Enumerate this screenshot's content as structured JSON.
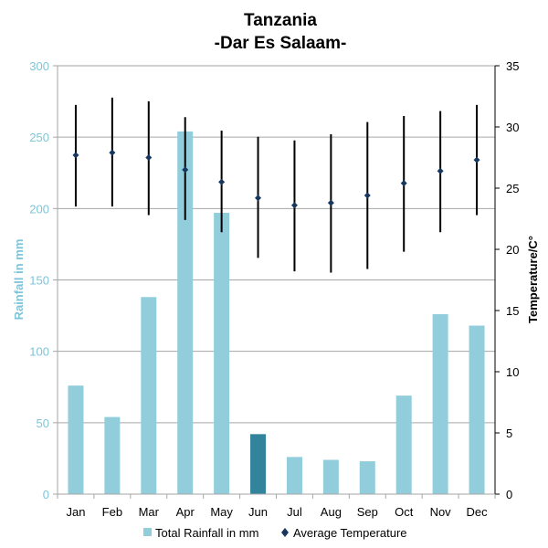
{
  "chart_data": {
    "type": "bar",
    "title": "Tanzania",
    "subtitle": "-Dar Es Salaam-",
    "categories": [
      "Jan",
      "Feb",
      "Mar",
      "Apr",
      "May",
      "Jun",
      "Jul",
      "Aug",
      "Sep",
      "Oct",
      "Nov",
      "Dec"
    ],
    "ylabel": "Rainfall in mm",
    "y2label": "Temperature/C°",
    "ylim": [
      0,
      300
    ],
    "y2lim": [
      0,
      35
    ],
    "yticks": [
      "0",
      "50",
      "100",
      "150",
      "200",
      "250",
      "300"
    ],
    "y2ticks": [
      "0",
      "5",
      "10",
      "15",
      "20",
      "25",
      "30",
      "35"
    ],
    "grid": true,
    "legend_position": "bottom",
    "highlight_index": 5,
    "colors": {
      "bar": "#92cddc",
      "bar_highlight": "#31849b",
      "marker": "#17375e",
      "range": "#000000",
      "left_axis": "#7fc4d8"
    },
    "series": [
      {
        "name": "Total Rainfall in mm",
        "kind": "bar",
        "axis": "left",
        "values": [
          76,
          54,
          138,
          254,
          197,
          42,
          26,
          24,
          23,
          69,
          126,
          118
        ]
      },
      {
        "name": "Average Temperature",
        "kind": "marker",
        "axis": "right",
        "values": [
          27.7,
          27.9,
          27.5,
          26.5,
          25.5,
          24.2,
          23.6,
          23.8,
          24.4,
          25.4,
          26.4,
          27.3
        ],
        "low": [
          23.5,
          23.5,
          22.8,
          22.4,
          21.4,
          19.3,
          18.2,
          18.1,
          18.4,
          19.8,
          21.4,
          22.8
        ],
        "high": [
          31.8,
          32.4,
          32.1,
          30.8,
          29.7,
          29.2,
          28.9,
          29.4,
          30.4,
          30.9,
          31.3,
          31.8
        ]
      }
    ]
  }
}
